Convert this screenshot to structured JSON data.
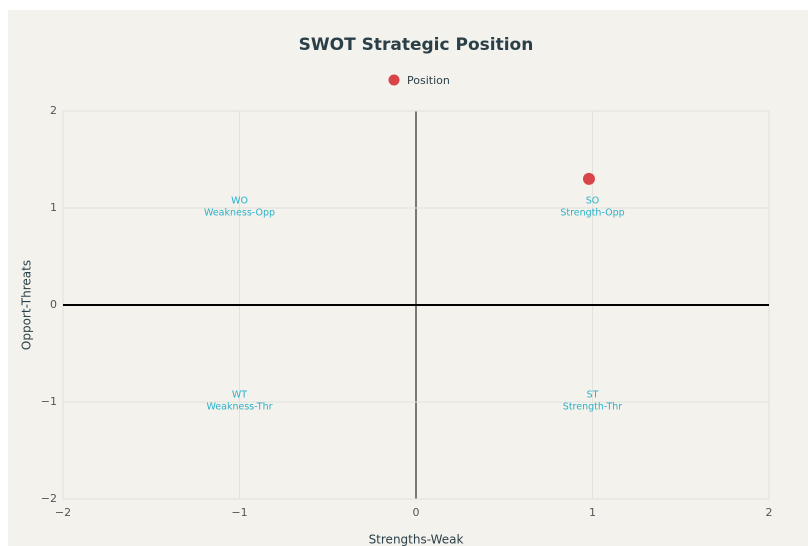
{
  "chart_data": {
    "type": "scatter",
    "title": "SWOT Strategic Position",
    "xlabel": "Strengths-Weak",
    "ylabel": "Opport-Threats",
    "series": [
      {
        "name": "Position",
        "color": "#d9434a",
        "x": [
          0.98
        ],
        "values": [
          1.3
        ]
      }
    ],
    "xlim": [
      -2,
      2
    ],
    "ylim": [
      -2,
      2
    ],
    "xticks": [
      {
        "value": -2,
        "label": "−2"
      },
      {
        "value": -1,
        "label": "−1"
      },
      0,
      1,
      2
    ],
    "yticks": [
      {
        "value": -2,
        "label": "−2"
      },
      {
        "value": -1,
        "label": "−1"
      },
      0,
      1,
      2
    ],
    "grid": true,
    "legend": "top",
    "annotations": [
      {
        "x": 1,
        "y": 1,
        "lines": [
          "SO",
          "Strength-Opp"
        ]
      },
      {
        "x": -1,
        "y": 1,
        "lines": [
          "WO",
          "Weakness-Opp"
        ]
      },
      {
        "x": 1,
        "y": -1,
        "lines": [
          "ST",
          "Strength-Thr"
        ]
      },
      {
        "x": -1,
        "y": -1,
        "lines": [
          "WT",
          "Weakness-Thr"
        ]
      }
    ]
  }
}
